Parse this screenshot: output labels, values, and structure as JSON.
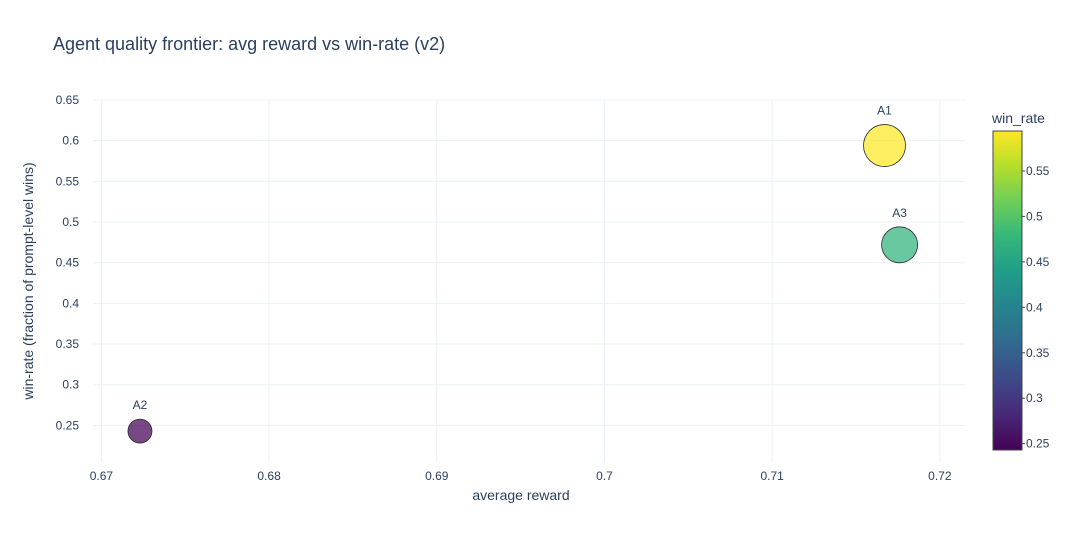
{
  "chart_data": {
    "type": "scatter",
    "title": "Agent quality frontier: avg reward vs win-rate (v2)",
    "xlabel": "average reward",
    "ylabel": "win-rate (fraction of prompt-level wins)",
    "xlim": [
      0.6695,
      0.7215
    ],
    "ylim": [
      0.205,
      0.65
    ],
    "xticks": [
      0.67,
      0.68,
      0.69,
      0.7,
      0.71,
      0.72
    ],
    "xtick_labels": [
      "0.67",
      "0.68",
      "0.69",
      "0.7",
      "0.71",
      "0.72"
    ],
    "yticks": [
      0.25,
      0.3,
      0.35,
      0.4,
      0.45,
      0.5,
      0.55,
      0.6,
      0.65
    ],
    "ytick_labels": [
      "0.25",
      "0.3",
      "0.35",
      "0.4",
      "0.45",
      "0.5",
      "0.55",
      "0.6",
      "0.65"
    ],
    "grid": true,
    "points": [
      {
        "label": "A1",
        "x": 0.7167,
        "y": 0.594,
        "size_rank": 3
      },
      {
        "label": "A3",
        "x": 0.7176,
        "y": 0.472,
        "size_rank": 2
      },
      {
        "label": "A2",
        "x": 0.6723,
        "y": 0.243,
        "size_rank": 1
      }
    ],
    "colorbar": {
      "title": "win_rate",
      "colorscale": "Viridis",
      "range": [
        0.243,
        0.594
      ],
      "ticks": [
        0.25,
        0.3,
        0.35,
        0.4,
        0.45,
        0.5,
        0.55
      ],
      "tick_labels": [
        "0.25",
        "0.3",
        "0.35",
        "0.4",
        "0.45",
        "0.5",
        "0.55"
      ]
    }
  }
}
